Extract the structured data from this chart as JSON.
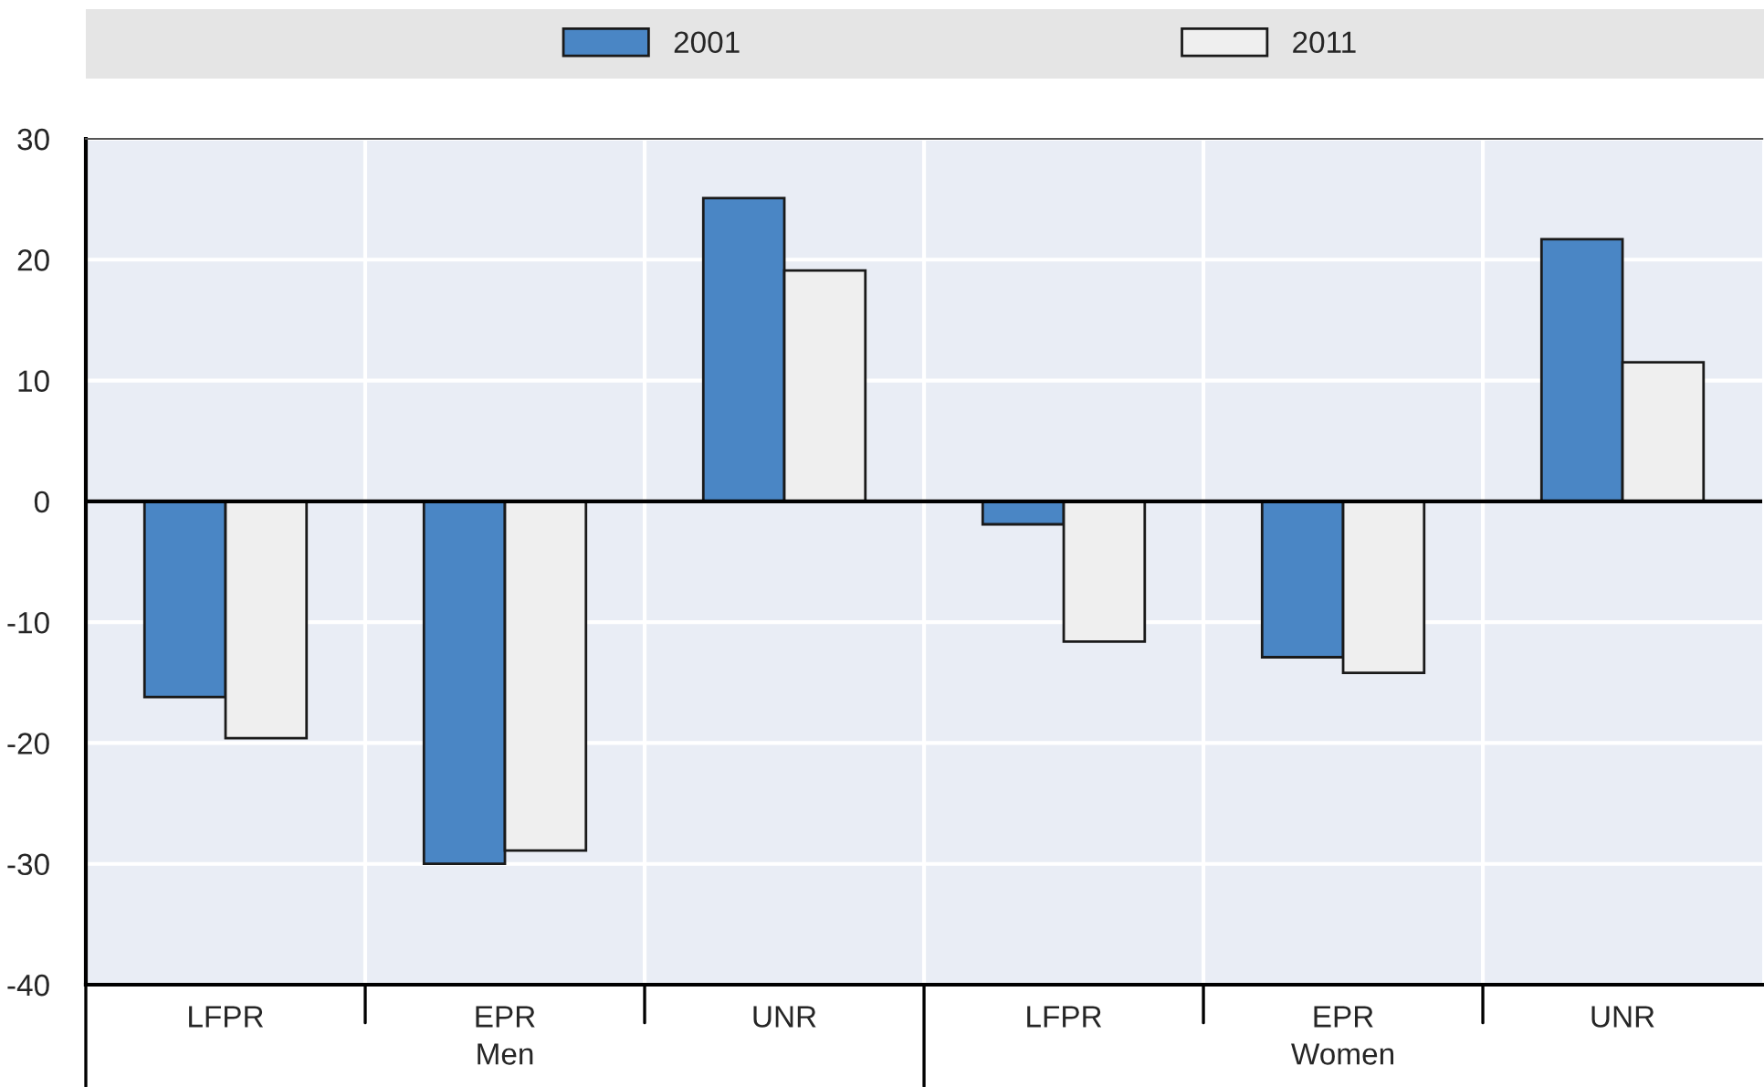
{
  "chart_data": {
    "type": "bar",
    "categories": [
      "LFPR",
      "EPR",
      "UNR",
      "LFPR",
      "EPR",
      "UNR"
    ],
    "series": [
      {
        "name": "2001",
        "color": "#4a86c5",
        "values": [
          -16.2,
          -30.0,
          25.1,
          -1.9,
          -12.9,
          21.7
        ]
      },
      {
        "name": "2011",
        "color": "#efefef",
        "values": [
          -19.6,
          -28.9,
          19.1,
          -11.6,
          -14.2,
          11.5
        ]
      }
    ],
    "annotations": [
      "Men",
      "Women"
    ],
    "ylim": [
      -40,
      30
    ],
    "yticks": [
      -40,
      -30,
      -20,
      -10,
      0,
      10,
      20,
      30
    ],
    "grid": true,
    "legend": "top"
  }
}
